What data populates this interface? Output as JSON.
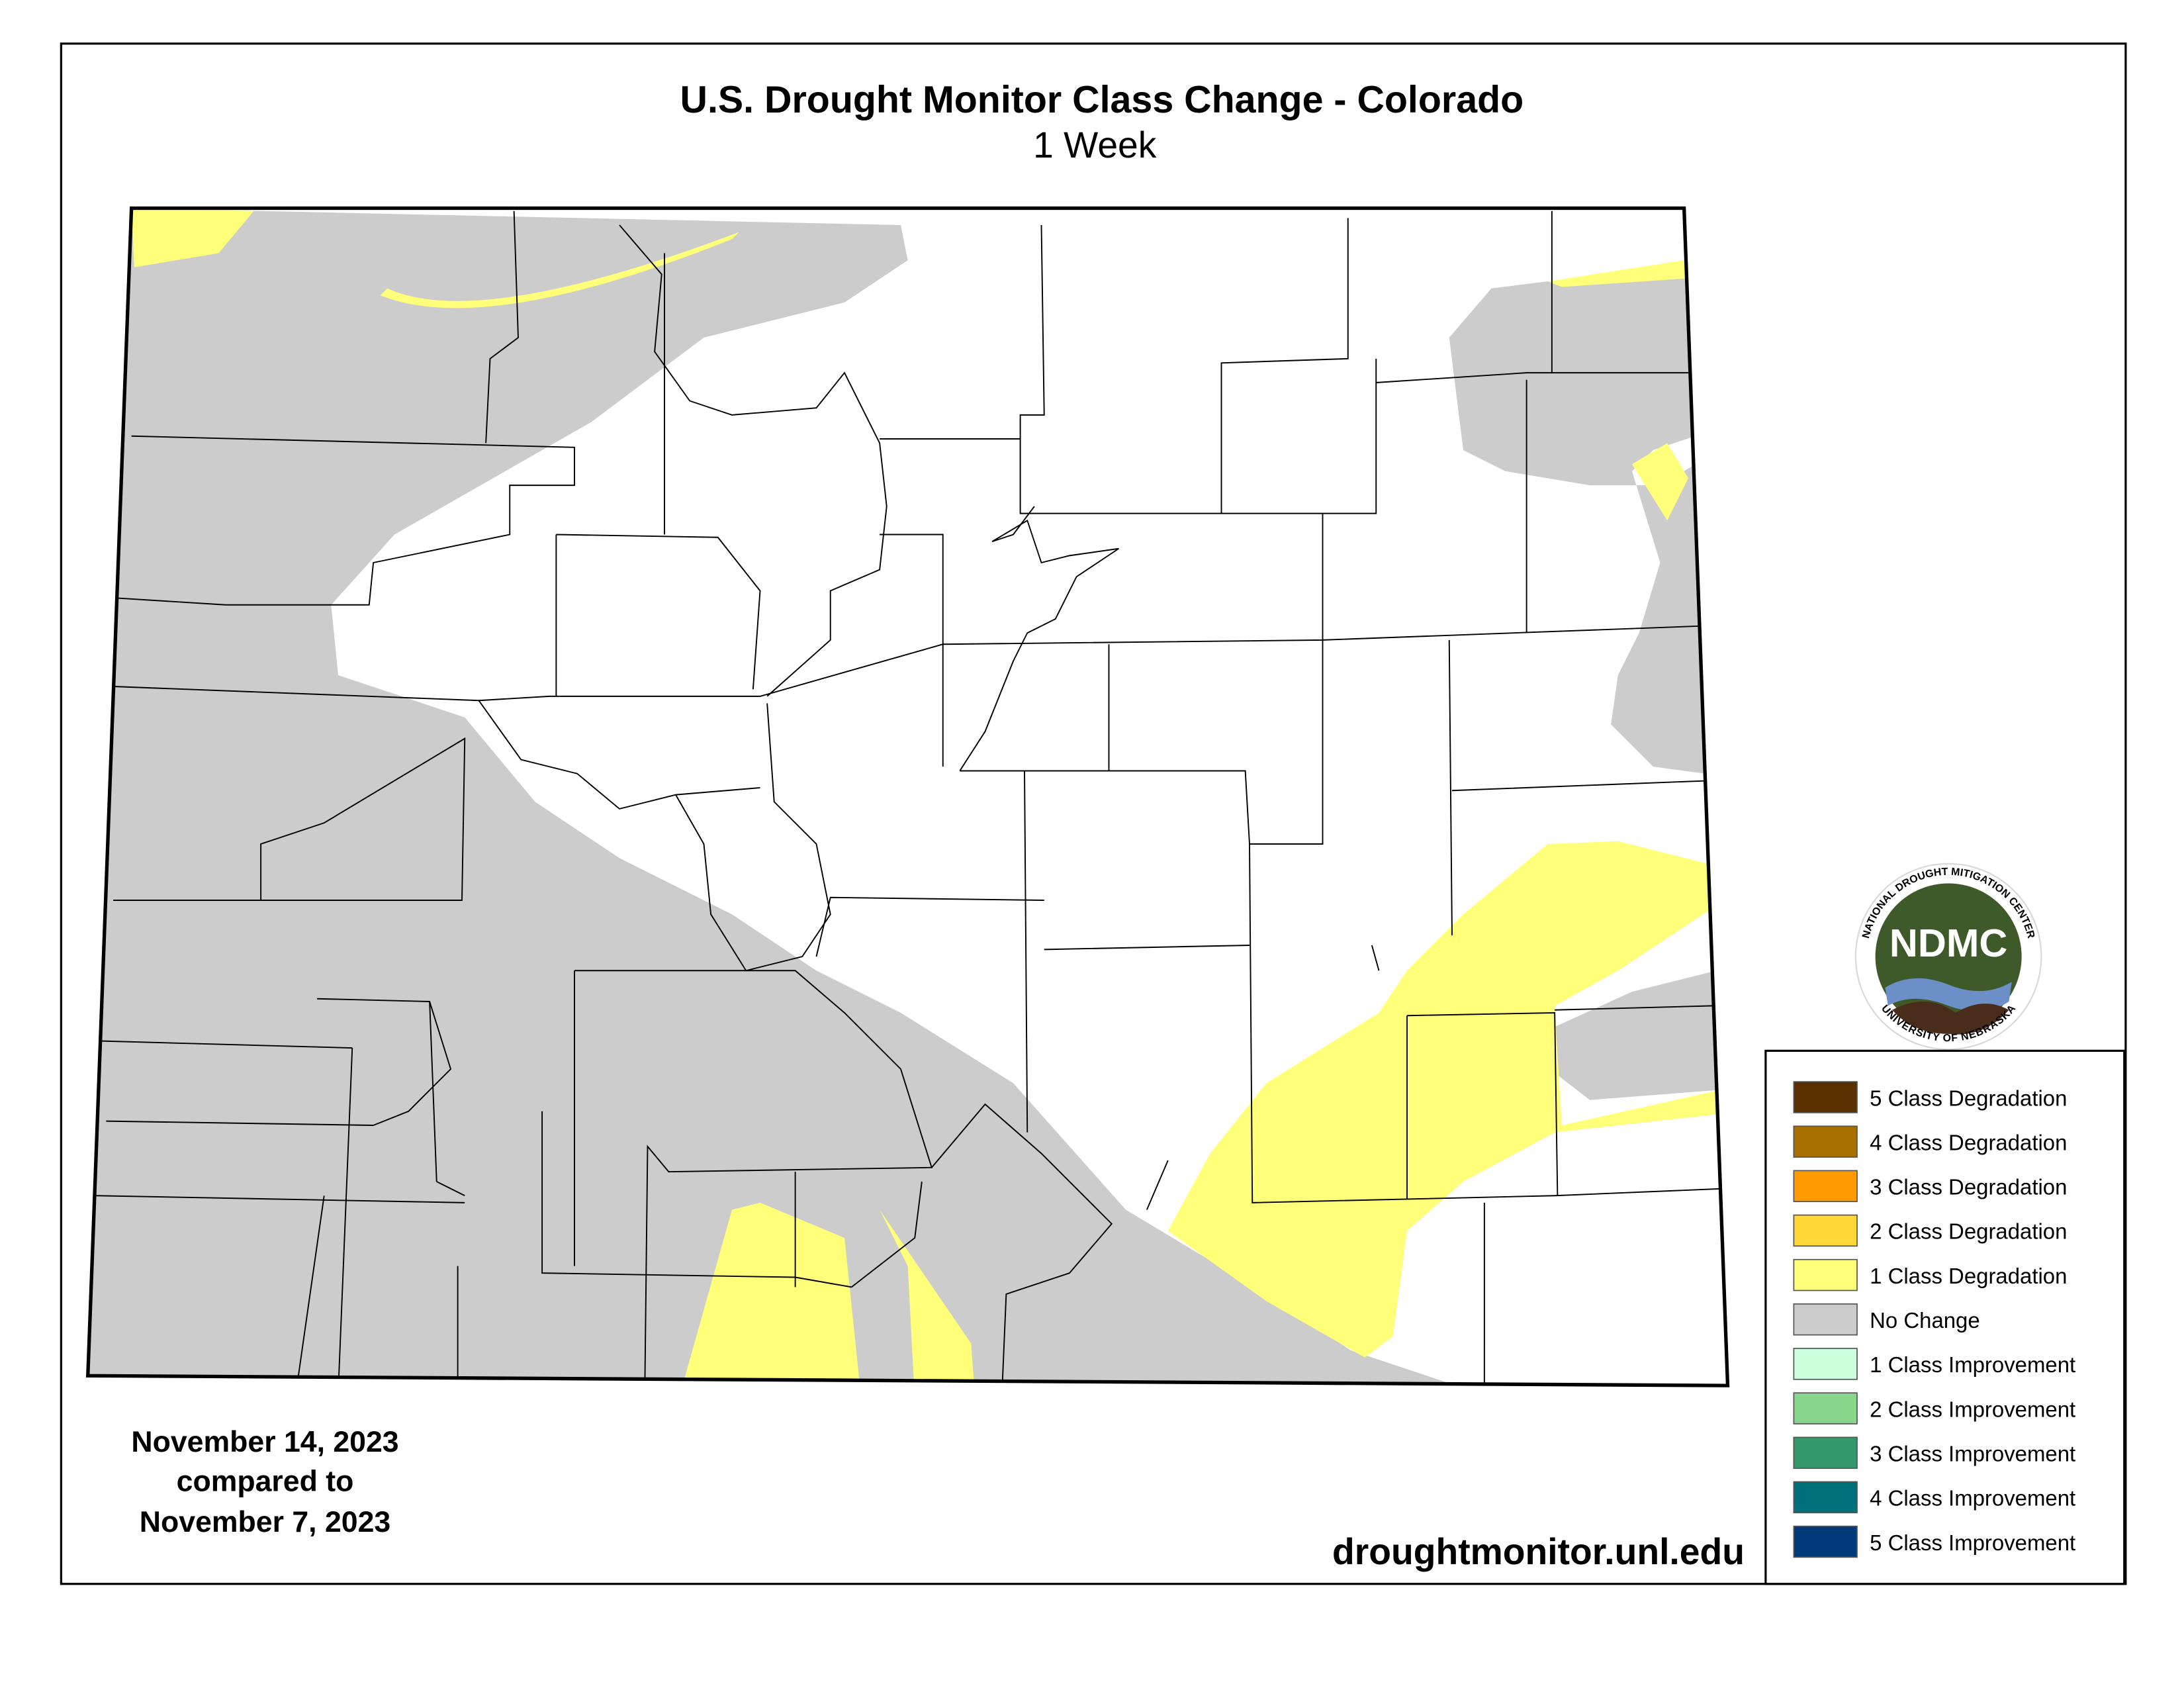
{
  "header": {
    "title": "U.S. Drought Monitor Class Change - Colorado",
    "subtitle": "1 Week"
  },
  "dates": {
    "line1": "November 14, 2023",
    "line2": "compared to",
    "line3": "November 7, 2023"
  },
  "website": "droughtmonitor.unl.edu",
  "logo": {
    "acronym": "NDMC",
    "top_text": "NATIONAL DROUGHT MITIGATION CENTER",
    "bottom_text": "UNIVERSITY OF NEBRASKA"
  },
  "legend": {
    "items": [
      {
        "label": "5 Class Degradation",
        "color": "#5a3000"
      },
      {
        "label": "4 Class Degradation",
        "color": "#a66f00"
      },
      {
        "label": "3 Class Degradation",
        "color": "#ff9a00"
      },
      {
        "label": "2 Class Degradation",
        "color": "#ffd837"
      },
      {
        "label": "1 Class Degradation",
        "color": "#ffff7a"
      },
      {
        "label": "No Change",
        "color": "#cccccc"
      },
      {
        "label": "1 Class Improvement",
        "color": "#ccffdd"
      },
      {
        "label": "2 Class Improvement",
        "color": "#88d68c"
      },
      {
        "label": "3 Class Improvement",
        "color": "#33996a"
      },
      {
        "label": "4 Class Improvement",
        "color": "#00707a"
      },
      {
        "label": "5 Class Improvement",
        "color": "#003a7a"
      }
    ]
  }
}
